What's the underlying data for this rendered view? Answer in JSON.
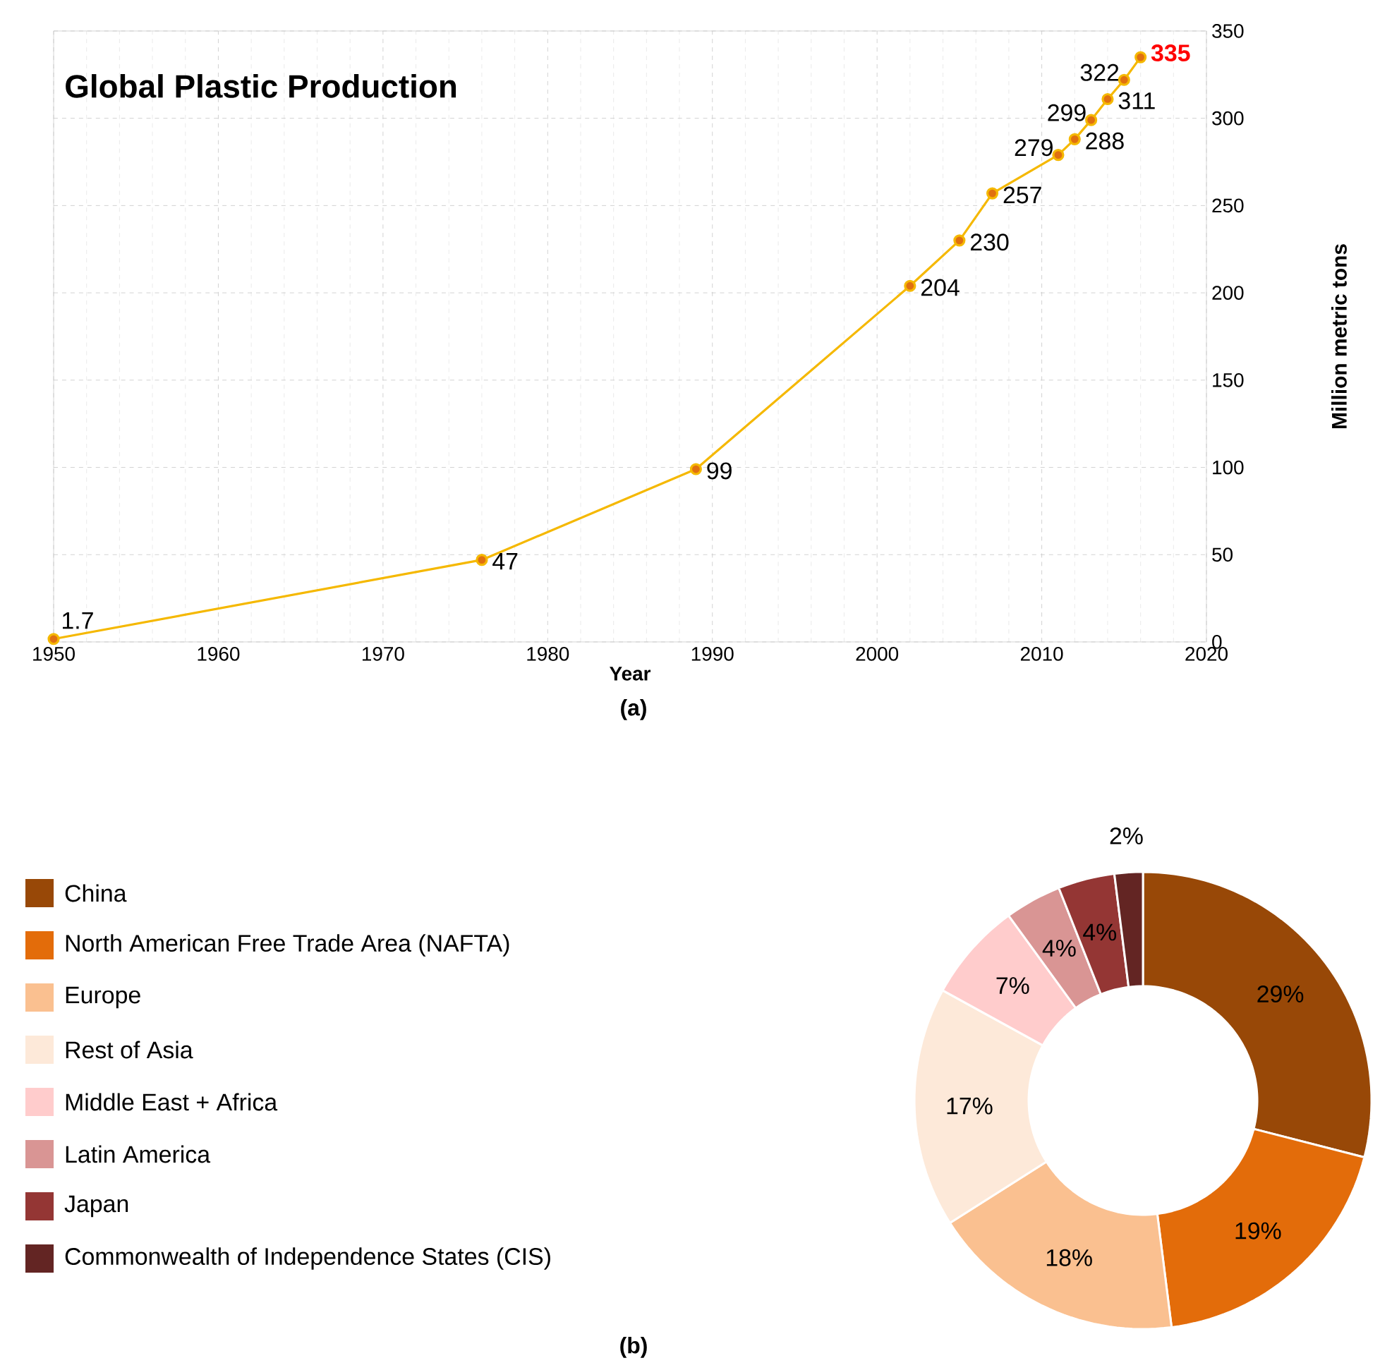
{
  "chart_data": [
    {
      "type": "line",
      "title": "Global Plastic Production",
      "xlabel": "Year",
      "ylabel": "Million metric tons",
      "x": [
        1950,
        1976,
        1989,
        2002,
        2005,
        2007,
        2011,
        2012,
        2013,
        2014,
        2015,
        2016
      ],
      "series": [
        {
          "color": "#f5b800",
          "values": [
            1.7,
            47,
            99,
            204,
            230,
            257,
            279,
            288,
            299,
            311,
            322,
            335
          ]
        }
      ],
      "xlim": [
        1950,
        2020
      ],
      "xticks": [
        1950,
        1960,
        1970,
        1980,
        1990,
        2000,
        2010,
        2020
      ],
      "ylim": [
        0,
        350
      ],
      "yticks": [
        0,
        50,
        100,
        150,
        200,
        250,
        300,
        350
      ],
      "grid": true,
      "marker": "circle",
      "data_labels": true,
      "annotations": [
        "(a)"
      ]
    },
    {
      "type": "donut",
      "categories": [
        "China",
        "North American Free Trade Area (NAFTA)",
        "Europe",
        "Rest of Asia",
        "Middle East + Africa",
        "Latin America",
        "Japan",
        "Commonwealth of Independence States (CIS)"
      ],
      "values": [
        29,
        19,
        18,
        17,
        7,
        4,
        4,
        2
      ],
      "value_labels": [
        "29%",
        "19%",
        "18%",
        "17%",
        "7%",
        "4%",
        "4%",
        "2%"
      ],
      "colors": [
        "#984807",
        "#e36c0a",
        "#fac090",
        "#fde9d9",
        "#ffcccc",
        "#d99594",
        "#943634",
        "#632523"
      ],
      "legend": "left",
      "annotations": [
        "(b)"
      ]
    }
  ]
}
